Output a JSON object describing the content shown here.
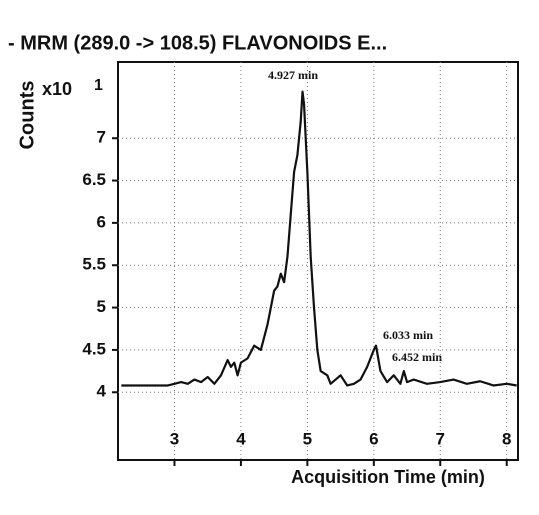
{
  "chart_data": {
    "type": "line",
    "title": "- MRM (289.0 -> 108.5) FLAVONOIDS E...",
    "y_label": "Counts",
    "y_multiplier": "x10",
    "y_exponent": "1",
    "x_label": "Acquisition Time (min)",
    "annotations": [
      "4.927 min",
      "6.033 min",
      "6.452 min"
    ],
    "xlim": [
      2.15,
      8.17
    ],
    "ylim": [
      3.2,
      7.9
    ],
    "xticks": [
      3,
      4,
      5,
      6,
      7,
      8
    ],
    "yticks": [
      4,
      4.5,
      5,
      5.5,
      6,
      6.5,
      7
    ],
    "grid": true,
    "series": [
      {
        "color": "#111111",
        "x": [
          2.2,
          2.9,
          3.0,
          3.1,
          3.2,
          3.3,
          3.4,
          3.5,
          3.6,
          3.7,
          3.8,
          3.85,
          3.9,
          3.95,
          4.0,
          4.1,
          4.2,
          4.3,
          4.4,
          4.5,
          4.55,
          4.6,
          4.65,
          4.7,
          4.75,
          4.8,
          4.85,
          4.9,
          4.927,
          4.95,
          5.0,
          5.05,
          5.1,
          5.15,
          5.2,
          5.3,
          5.35,
          5.5,
          5.6,
          5.7,
          5.8,
          5.9,
          5.95,
          6.0,
          6.033,
          6.1,
          6.2,
          6.3,
          6.4,
          6.452,
          6.5,
          6.6,
          6.8,
          7.0,
          7.2,
          7.4,
          7.6,
          7.8,
          8.0,
          8.15
        ],
        "values": [
          4.08,
          4.08,
          4.1,
          4.12,
          4.1,
          4.15,
          4.12,
          4.18,
          4.1,
          4.2,
          4.38,
          4.3,
          4.35,
          4.2,
          4.35,
          4.4,
          4.55,
          4.5,
          4.8,
          5.2,
          5.25,
          5.4,
          5.3,
          5.6,
          6.1,
          6.6,
          6.8,
          7.2,
          7.55,
          7.4,
          6.6,
          5.6,
          5.0,
          4.5,
          4.25,
          4.2,
          4.1,
          4.2,
          4.08,
          4.1,
          4.15,
          4.3,
          4.4,
          4.5,
          4.55,
          4.25,
          4.12,
          4.2,
          4.1,
          4.25,
          4.12,
          4.15,
          4.1,
          4.12,
          4.15,
          4.1,
          4.13,
          4.08,
          4.1,
          4.08
        ]
      }
    ]
  }
}
